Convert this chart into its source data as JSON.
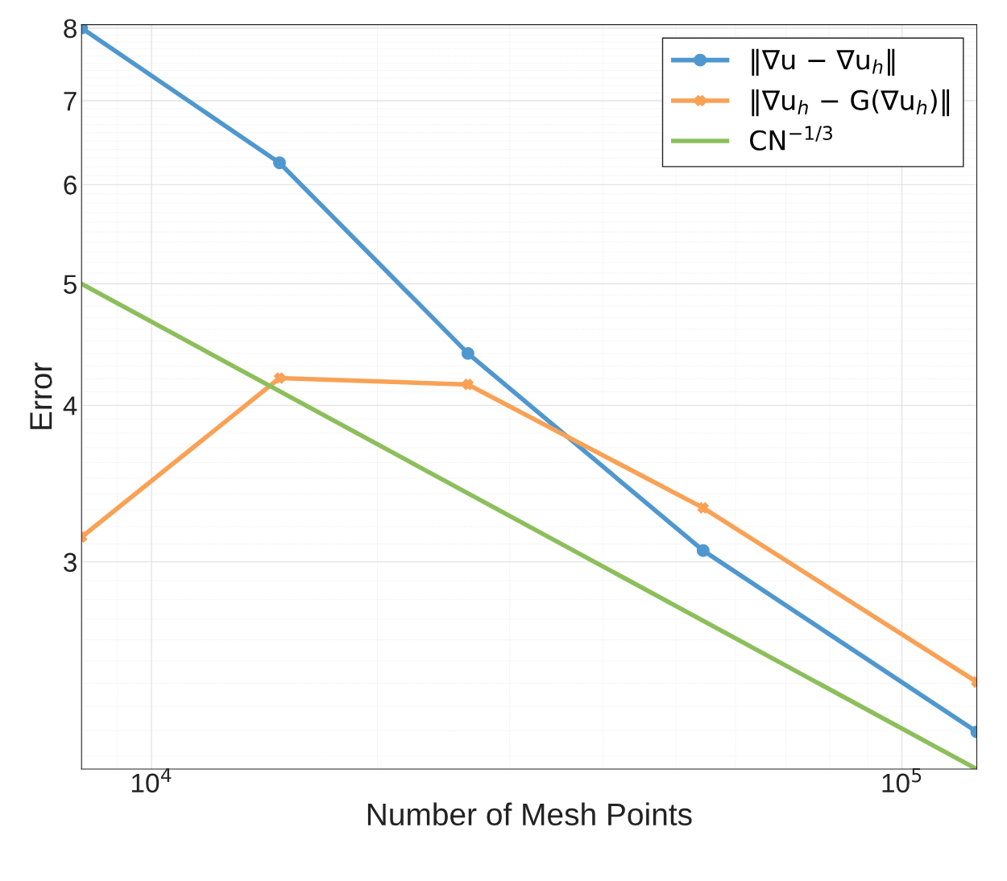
{
  "chart_data": {
    "type": "line",
    "xlabel": "Number of Mesh Points",
    "ylabel": "Error",
    "log": "xy",
    "grid": true,
    "legend": "top right",
    "x": [
      8068,
      14810,
      26400,
      54330,
      125800
    ],
    "xlim": [
      8068,
      125800
    ],
    "ylim": [
      2.05,
      8.05
    ],
    "xticks": [
      {
        "value": 10000,
        "label": "10$^{4}$"
      },
      {
        "value": 100000,
        "label": "10$^{5}$"
      }
    ],
    "yticks": [
      3,
      4,
      5,
      6,
      7,
      8
    ],
    "series": [
      {
        "name": "‖∇u − ∇u$_{h}$‖",
        "color": "#4f97cf",
        "marker": "circle",
        "values": [
          8.0,
          6.245,
          4.4,
          3.063,
          2.195
        ]
      },
      {
        "name": "‖∇u$_{h}$ − G(∇u$_{h}$)‖",
        "color": "#f9a155",
        "marker": "cross",
        "values": [
          3.14,
          4.205,
          4.156,
          3.313,
          2.406
        ]
      },
      {
        "name": "CN$^{−1/3}$",
        "color": "#8cbf5c",
        "marker": "none",
        "x": [
          8068,
          125800
        ],
        "values": [
          5.0,
          2.05
        ]
      }
    ]
  }
}
